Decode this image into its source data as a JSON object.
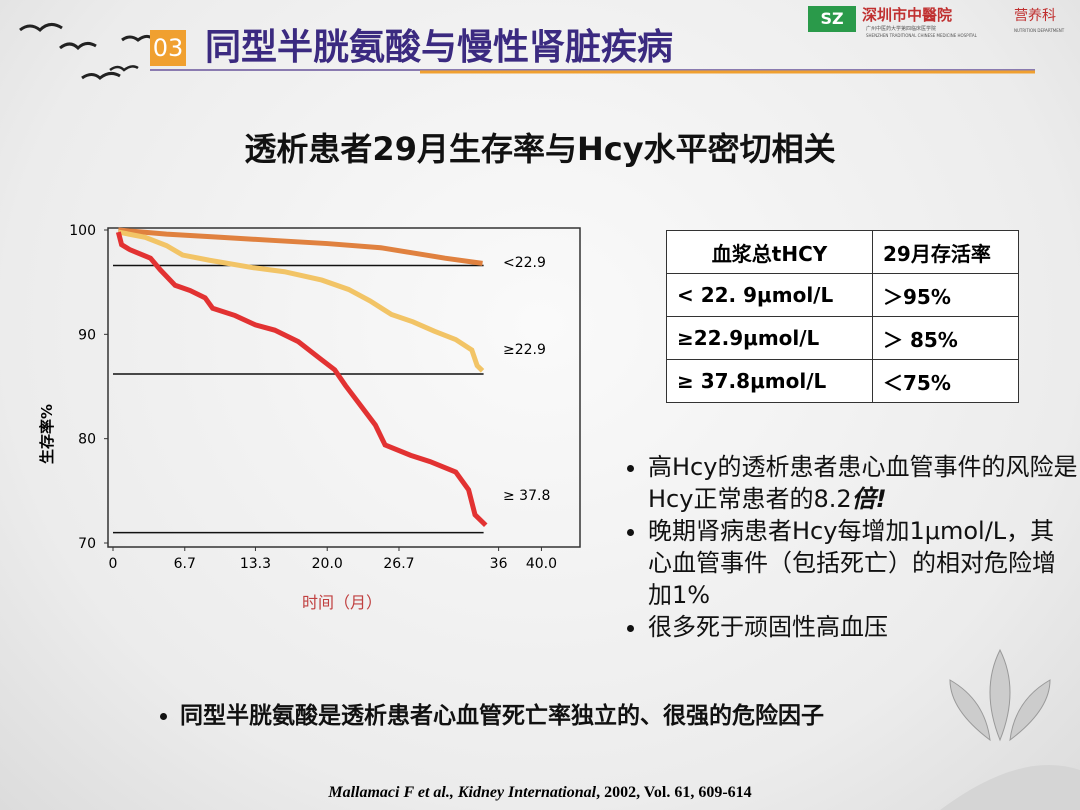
{
  "header": {
    "number": "03",
    "title": "同型半胱氨酸与慢性肾脏疾病",
    "logo": "SZ",
    "hospital": "深圳市中醫院",
    "hospital_sub": "广州中医药大学第四临床医学院",
    "hospital_en": "SHENZHEN TRADITIONAL CHINESE MEDICINE HOSPITAL",
    "department": "营养科",
    "department_en": "NUTRITION DEPARTMENT"
  },
  "subtitle": "透析患者29月生存率与Hcy水平密切相关",
  "chart_data": {
    "type": "line",
    "ylabel": "生存率%",
    "xlabel": "时间（月）",
    "xlim": [
      0,
      43.6
    ],
    "ylim": [
      70,
      100
    ],
    "xticks": [
      0,
      6.7,
      13.3,
      {
        "value": 20,
        "label": "20.0"
      },
      26.7,
      36,
      {
        "value": 40,
        "label": "40.0"
      }
    ],
    "yticks": [
      70,
      80,
      90,
      100
    ],
    "hlines": [
      96.6,
      86.2,
      71.0
    ],
    "series": [
      {
        "name": "<22.9",
        "color": "#e0813f",
        "x": [
          0.5,
          5,
          10,
          15,
          20,
          25,
          28,
          31,
          34.5
        ],
        "values": [
          100,
          99.6,
          99.3,
          99.0,
          98.7,
          98.3,
          97.8,
          97.3,
          96.8
        ]
      },
      {
        "name": "≥22.9",
        "color": "#f2c466",
        "x": [
          0.5,
          3,
          5,
          6.5,
          9,
          13,
          16,
          19.5,
          22,
          24,
          26,
          28,
          30,
          32,
          33.5,
          34,
          34.5
        ],
        "values": [
          99.8,
          99.3,
          98.5,
          97.6,
          97.1,
          96.4,
          96.0,
          95.2,
          94.3,
          93.2,
          91.9,
          91.2,
          90.3,
          89.5,
          88.5,
          87.0,
          86.5
        ]
      },
      {
        "name": "≥ 37.8",
        "color": "#e23232",
        "x": [
          0.5,
          0.8,
          1.6,
          3.5,
          4.4,
          5.8,
          7.2,
          8.6,
          9.3,
          11.4,
          13.3,
          15.1,
          17.3,
          19.3,
          20.7,
          21.7,
          23.1,
          24.5,
          25.4,
          27.8,
          29.6,
          32.0,
          33.2,
          33.8,
          34.8
        ],
        "values": [
          99.8,
          98.6,
          98.1,
          97.3,
          96.2,
          94.7,
          94.2,
          93.5,
          92.5,
          91.8,
          90.9,
          90.4,
          89.3,
          87.7,
          86.6,
          85.1,
          83.2,
          81.3,
          79.4,
          78.4,
          77.8,
          76.8,
          75.1,
          72.7,
          71.7
        ]
      }
    ]
  },
  "table": {
    "header": [
      "血浆总tHCY",
      "29月存活率"
    ],
    "rows": [
      [
        "< 22. 9μmol/L",
        "＞95%"
      ],
      [
        "≥22.9μmol/L",
        "＞ 85%"
      ],
      [
        "≥ 37.8μmol/L",
        "＜75%"
      ]
    ]
  },
  "bullets": [
    {
      "text": "高Hcy的透析患者患心血管事件的风险是Hcy正常患者的8.2",
      "emph": "倍!"
    },
    {
      "text": "晚期肾病患者Hcy每增加1μmol/L，其心血管事件（包括死亡）的相对危险增加1%"
    },
    {
      "text": "很多死于顽固性高血压"
    }
  ],
  "conclusion": "同型半胱氨酸是透析患者心血管死亡率独立的、很强的危险因子",
  "citation": {
    "authors": "Mallamaci F et al., ",
    "journal": "Kidney International",
    "rest": ", 2002, Vol. 61, 609-614"
  }
}
